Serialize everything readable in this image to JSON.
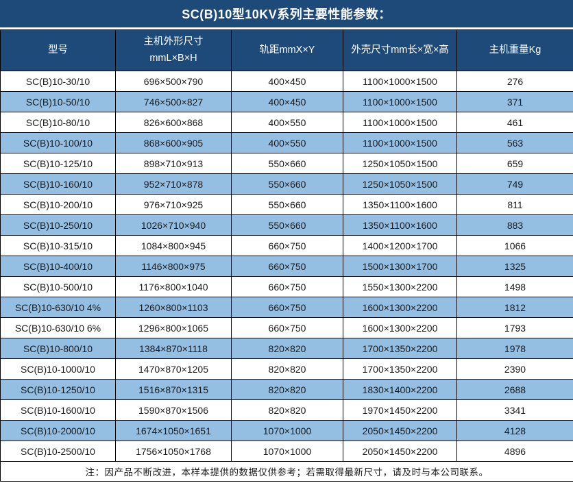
{
  "title": "SC(B)10型10KV系列主要性能参数：",
  "note": "注：因产品不断改进，本样本提供的数据仅供参考；若需取得最新尺寸，请及时与本公司联系。",
  "colors": {
    "header_bg": "#1E4A7A",
    "header_text": "#FFFFFF",
    "row_bg": "#FFFFFF",
    "row_alt_bg": "#95BEE3",
    "border": "#000000",
    "cell_text": "#1A1A1A"
  },
  "table": {
    "columns": [
      {
        "id": "model",
        "label": "型号"
      },
      {
        "id": "main-dims",
        "label": "主机外形尺寸\nmmL×B×H"
      },
      {
        "id": "rail-gauge",
        "label": "轨距mmX×Y"
      },
      {
        "id": "shell-dims",
        "label": "外壳尺寸mm长×宽×高"
      },
      {
        "id": "weight",
        "label": "主机重量Kg"
      }
    ],
    "rows": [
      [
        "SC(B)10-30/10",
        "696×500×790",
        "400×450",
        "1100×1000×1500",
        "276"
      ],
      [
        "SC(B)10-50/10",
        "746×500×827",
        "400×450",
        "1100×1000×1500",
        "371"
      ],
      [
        "SC(B)10-80/10",
        "826×600×868",
        "400×550",
        "1100×1000×1500",
        "461"
      ],
      [
        "SC(B)10-100/10",
        "868×600×905",
        "400×550",
        "1100×1000×1500",
        "563"
      ],
      [
        "SC(B)10-125/10",
        "898×710×913",
        "550×660",
        "1250×1050×1500",
        "659"
      ],
      [
        "SC(B)10-160/10",
        "952×710×878",
        "550×660",
        "1250×1050×1500",
        "749"
      ],
      [
        "SC(B)10-200/10",
        "976×710×925",
        "550×660",
        "1350×1100×1600",
        "811"
      ],
      [
        "SC(B)10-250/10",
        "1026×710×940",
        "550×660",
        "1350×1100×1600",
        "883"
      ],
      [
        "SC(B)10-315/10",
        "1084×800×945",
        "660×750",
        "1400×1200×1700",
        "1066"
      ],
      [
        "SC(B)10-400/10",
        "1146×800×975",
        "660×750",
        "1500×1300×1700",
        "1325"
      ],
      [
        "SC(B)10-500/10",
        "1176×800×1040",
        "660×750",
        "1550×1300×2200",
        "1498"
      ],
      [
        "SC(B)10-630/10 4%",
        "1260×800×1103",
        "660×750",
        "1600×1300×2200",
        "1812"
      ],
      [
        "SC(B)10-630/10 6%",
        "1296×800×1065",
        "660×750",
        "1600×1300×2200",
        "1793"
      ],
      [
        "SC(B)10-800/10",
        "1384×870×1118",
        "820×820",
        "1700×1350×2200",
        "1978"
      ],
      [
        "SC(B)10-1000/10",
        "1470×870×1205",
        "820×820",
        "1700×1350×2200",
        "2390"
      ],
      [
        "SC(B)10-1250/10",
        "1516×870×1315",
        "820×820",
        "1830×1400×2200",
        "2688"
      ],
      [
        "SC(B)10-1600/10",
        "1590×870×1506",
        "820×820",
        "1970×1450×2200",
        "3341"
      ],
      [
        "SC(B)10-2000/10",
        "1674×1050×1651",
        "1070×1000",
        "2050×1450×2200",
        "4128"
      ],
      [
        "SC(B)10-2500/10",
        "1756×1050×1768",
        "1070×1000",
        "2050×1450×2200",
        "4896"
      ]
    ]
  }
}
